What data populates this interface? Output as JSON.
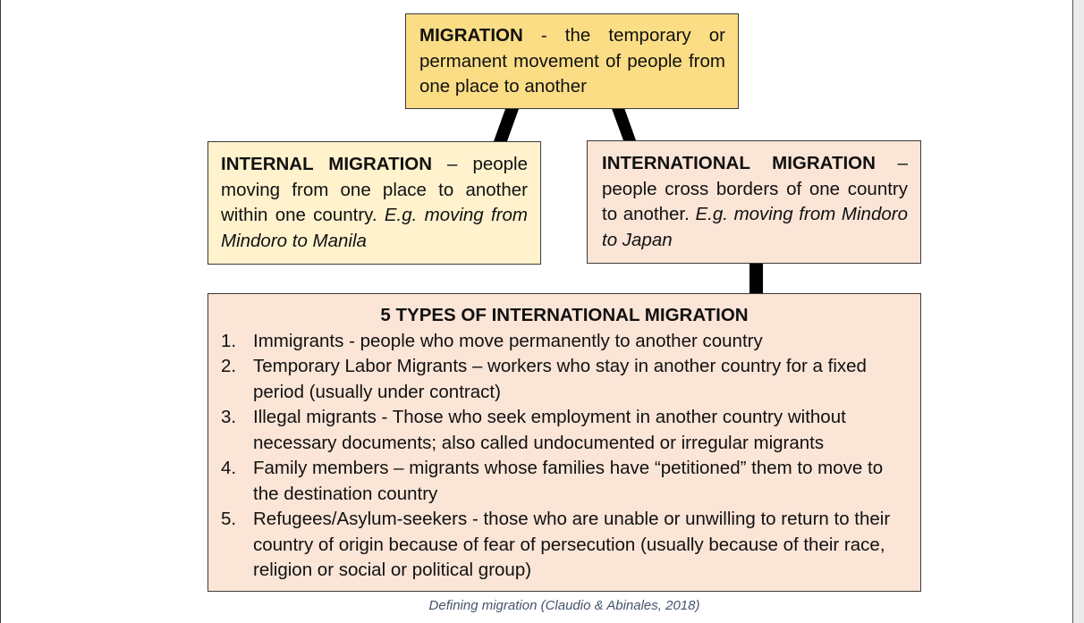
{
  "main_box": {
    "term": "MIGRATION",
    "text": " - the temporary or permanent movement of people from one place to another"
  },
  "internal_box": {
    "term": "INTERNAL MIGRATION",
    "text": " – people moving from one place to another within one country. ",
    "example": "E.g. moving from Mindoro to Manila"
  },
  "international_box": {
    "term": "INTERNATIONAL MIGRATION",
    "text": " – people cross borders of one country to another. ",
    "example": "E.g. moving from Mindoro to Japan"
  },
  "types_box": {
    "title": "5 TYPES OF INTERNATIONAL MIGRATION",
    "items": [
      {
        "number": "1.",
        "text": "Immigrants - people who move permanently to another country"
      },
      {
        "number": "2.",
        "text": "Temporary Labor Migrants – workers who stay in another country for a fixed period (usually under contract)"
      },
      {
        "number": "3.",
        "text": "Illegal migrants - Those who seek employment in another country without necessary documents; also called undocumented or irregular migrants"
      },
      {
        "number": "4.",
        "text": "Family members – migrants whose families have “petitioned” them to move to the destination country"
      },
      {
        "number": "5.",
        "text": "Refugees/Asylum-seekers - those who are unable or unwilling to return to their country of origin because of fear of persecution (usually because of their race, religion or social or political group)"
      }
    ]
  },
  "caption": "Defining migration (Claudio & Abinales, 2018)",
  "colors": {
    "main_fill": "#fbdd85",
    "internal_fill": "#fff2cd",
    "international_fill": "#fbe5d7",
    "connector": "#000000"
  }
}
